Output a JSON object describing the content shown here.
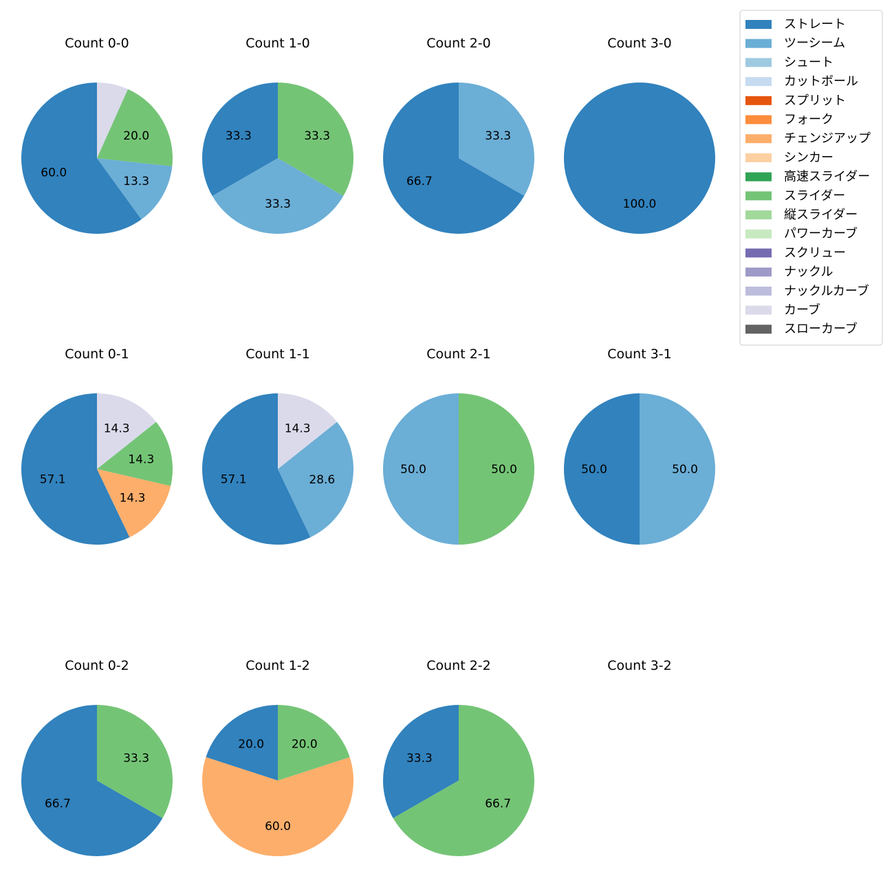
{
  "chart_data": {
    "type": "pie",
    "legend": {
      "placement": "top-right",
      "entries": [
        {
          "name": "ストレート",
          "color": "#3182bd"
        },
        {
          "name": "ツーシーム",
          "color": "#6baed6"
        },
        {
          "name": "シュート",
          "color": "#9ecae1"
        },
        {
          "name": "カットボール",
          "color": "#c6dbef"
        },
        {
          "name": "スプリット",
          "color": "#e6550d"
        },
        {
          "name": "フォーク",
          "color": "#fd8d3c"
        },
        {
          "name": "チェンジアップ",
          "color": "#fdae6b"
        },
        {
          "name": "シンカー",
          "color": "#fdd0a2"
        },
        {
          "name": "高速スライダー",
          "color": "#31a354"
        },
        {
          "name": "スライダー",
          "color": "#74c476"
        },
        {
          "name": "縦スライダー",
          "color": "#a1d99b"
        },
        {
          "name": "パワーカーブ",
          "color": "#c7e9c0"
        },
        {
          "name": "スクリュー",
          "color": "#756bb1"
        },
        {
          "name": "ナックル",
          "color": "#9e9ac8"
        },
        {
          "name": "ナックルカーブ",
          "color": "#bcbddc"
        },
        {
          "name": "カーブ",
          "color": "#dadaeb"
        },
        {
          "name": "スローカーブ",
          "color": "#636363"
        }
      ]
    },
    "charts": [
      {
        "title": "Count 0-0",
        "slices": [
          {
            "pitch": "ストレート",
            "value": 60.0,
            "label": "60.0"
          },
          {
            "pitch": "ツーシーム",
            "value": 13.3,
            "label": "13.3"
          },
          {
            "pitch": "スライダー",
            "value": 20.0,
            "label": "20.0"
          },
          {
            "pitch": "カーブ",
            "value": 6.7,
            "label": ""
          }
        ]
      },
      {
        "title": "Count 1-0",
        "slices": [
          {
            "pitch": "ストレート",
            "value": 33.3,
            "label": "33.3"
          },
          {
            "pitch": "ツーシーム",
            "value": 33.3,
            "label": "33.3"
          },
          {
            "pitch": "スライダー",
            "value": 33.3,
            "label": "33.3"
          }
        ]
      },
      {
        "title": "Count 2-0",
        "slices": [
          {
            "pitch": "ストレート",
            "value": 66.7,
            "label": "66.7"
          },
          {
            "pitch": "ツーシーム",
            "value": 33.3,
            "label": "33.3"
          }
        ]
      },
      {
        "title": "Count 3-0",
        "slices": [
          {
            "pitch": "ストレート",
            "value": 100.0,
            "label": "100.0"
          }
        ]
      },
      {
        "title": "Count 0-1",
        "slices": [
          {
            "pitch": "ストレート",
            "value": 57.1,
            "label": "57.1"
          },
          {
            "pitch": "チェンジアップ",
            "value": 14.3,
            "label": "14.3"
          },
          {
            "pitch": "スライダー",
            "value": 14.3,
            "label": "14.3"
          },
          {
            "pitch": "カーブ",
            "value": 14.3,
            "label": "14.3"
          }
        ]
      },
      {
        "title": "Count 1-1",
        "slices": [
          {
            "pitch": "ストレート",
            "value": 57.1,
            "label": "57.1"
          },
          {
            "pitch": "ツーシーム",
            "value": 28.6,
            "label": "28.6"
          },
          {
            "pitch": "カーブ",
            "value": 14.3,
            "label": "14.3"
          }
        ]
      },
      {
        "title": "Count 2-1",
        "slices": [
          {
            "pitch": "ツーシーム",
            "value": 50.0,
            "label": "50.0"
          },
          {
            "pitch": "スライダー",
            "value": 50.0,
            "label": "50.0"
          }
        ]
      },
      {
        "title": "Count 3-1",
        "slices": [
          {
            "pitch": "ストレート",
            "value": 50.0,
            "label": "50.0"
          },
          {
            "pitch": "ツーシーム",
            "value": 50.0,
            "label": "50.0"
          }
        ]
      },
      {
        "title": "Count 0-2",
        "slices": [
          {
            "pitch": "ストレート",
            "value": 66.7,
            "label": "66.7"
          },
          {
            "pitch": "スライダー",
            "value": 33.3,
            "label": "33.3"
          }
        ]
      },
      {
        "title": "Count 1-2",
        "slices": [
          {
            "pitch": "ストレート",
            "value": 20.0,
            "label": "20.0"
          },
          {
            "pitch": "チェンジアップ",
            "value": 60.0,
            "label": "60.0"
          },
          {
            "pitch": "スライダー",
            "value": 20.0,
            "label": "20.0"
          }
        ]
      },
      {
        "title": "Count 2-2",
        "slices": [
          {
            "pitch": "ストレート",
            "value": 33.3,
            "label": "33.3"
          },
          {
            "pitch": "スライダー",
            "value": 66.7,
            "label": "66.7"
          }
        ]
      },
      {
        "title": "Count 3-2",
        "slices": []
      }
    ]
  }
}
